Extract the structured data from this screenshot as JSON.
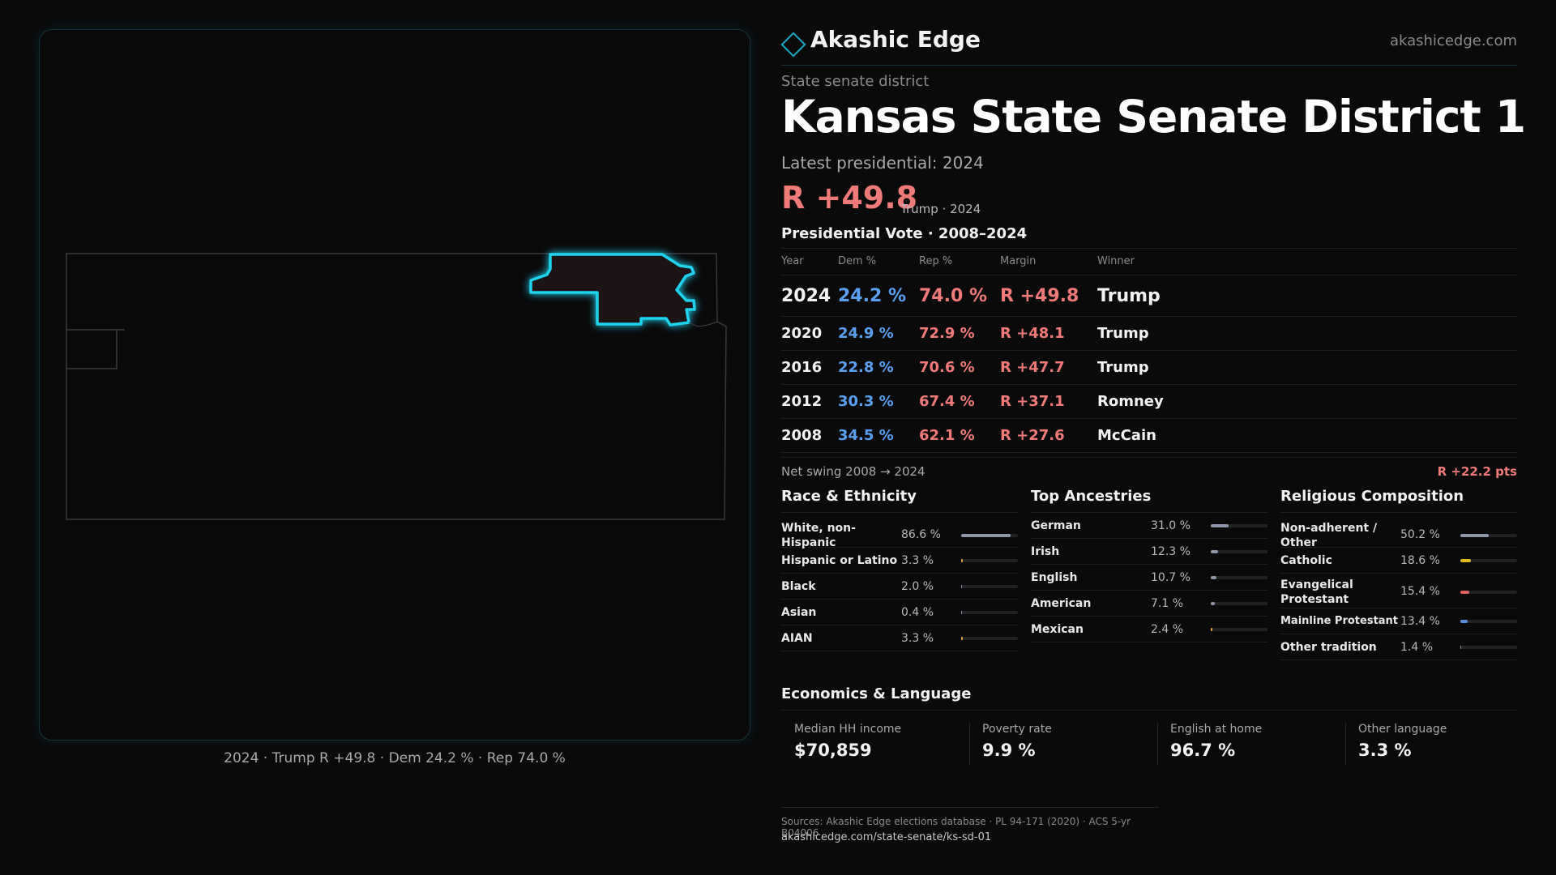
{
  "map": {
    "caption": "2024 · Trump R +49.8 · Dem 24.2 % · Rep 74.0 %",
    "highlight_color": "#1fd2ee",
    "fill_color": "#1c1314"
  },
  "brand": {
    "name": "Akashic Edge",
    "url": "akashicedge.com"
  },
  "header": {
    "kicker": "State senate district",
    "title": "Kansas State Senate District 1",
    "latest": "Latest presidential: 2024",
    "margin": "R +49.8",
    "margin_sub": "Trump · 2024"
  },
  "presidential": {
    "title": "Presidential Vote · 2008–2024",
    "headers": [
      "Year",
      "Dem %",
      "Rep %",
      "Margin",
      "Winner"
    ],
    "rows": [
      [
        "2024",
        "24.2 %",
        "74.0 %",
        "R +49.8",
        "Trump"
      ],
      [
        "2020",
        "24.9 %",
        "72.9 %",
        "R +48.1",
        "Trump"
      ],
      [
        "2016",
        "22.8 %",
        "70.6 %",
        "R +47.7",
        "Trump"
      ],
      [
        "2012",
        "30.3 %",
        "67.4 %",
        "R +37.1",
        "Romney"
      ],
      [
        "2008",
        "34.5 %",
        "62.1 %",
        "R +27.6",
        "McCain"
      ]
    ],
    "swing_label": "Net swing 2008 → 2024",
    "swing_value": "R +22.2 pts"
  },
  "race": {
    "title": "Race & Ethnicity",
    "items": [
      {
        "label": "White, non-Hispanic",
        "value": "86.6 %",
        "share": 0.866,
        "color": "#8c96a6"
      },
      {
        "label": "Hispanic or Latino",
        "value": "3.3 %",
        "share": 0.033,
        "color": "#e0a040"
      },
      {
        "label": "Black",
        "value": "2.0 %",
        "share": 0.02,
        "color": "#8c96a6"
      },
      {
        "label": "Asian",
        "value": "0.4 %",
        "share": 0.004,
        "color": "#8c96a6"
      },
      {
        "label": "AIAN",
        "value": "3.3 %",
        "share": 0.033,
        "color": "#e0a040"
      }
    ]
  },
  "ancestry": {
    "title": "Top Ancestries",
    "items": [
      {
        "label": "German",
        "value": "31.0 %",
        "share": 0.31,
        "color": "#8c96a6"
      },
      {
        "label": "Irish",
        "value": "12.3 %",
        "share": 0.123,
        "color": "#8c96a6"
      },
      {
        "label": "English",
        "value": "10.7 %",
        "share": 0.107,
        "color": "#8c96a6"
      },
      {
        "label": "American",
        "value": "7.1 %",
        "share": 0.071,
        "color": "#8c96a6"
      },
      {
        "label": "Mexican",
        "value": "2.4 %",
        "share": 0.024,
        "color": "#e0a040"
      }
    ]
  },
  "religion": {
    "title": "Religious Composition",
    "items": [
      {
        "label": "Non-adherent / Other",
        "value": "50.2 %",
        "share": 0.502,
        "color": "#8c96a6"
      },
      {
        "label": "Catholic",
        "value": "18.6 %",
        "share": 0.186,
        "color": "#e0b820"
      },
      {
        "label": "Evangelical Protestant",
        "value": "15.4 %",
        "share": 0.154,
        "color": "#e06060"
      },
      {
        "label": "Mainline Protestant",
        "value": "13.4 %",
        "share": 0.134,
        "color": "#5a8ee0"
      },
      {
        "label": "Other tradition",
        "value": "1.4 %",
        "share": 0.014,
        "color": "#8c96a6"
      }
    ]
  },
  "economics": {
    "title": "Economics & Language",
    "items": [
      {
        "label": "Median HH income",
        "value": "$70,859"
      },
      {
        "label": "Poverty rate",
        "value": "9.9 %"
      },
      {
        "label": "English at home",
        "value": "96.7 %"
      },
      {
        "label": "Other language",
        "value": "3.3 %"
      }
    ]
  },
  "footer": {
    "sources": "Sources: Akashic Edge elections database · PL 94-171 (2020) · ACS 5-yr B04006",
    "url": "akashicedge.com/state-senate/ks-sd-01"
  }
}
